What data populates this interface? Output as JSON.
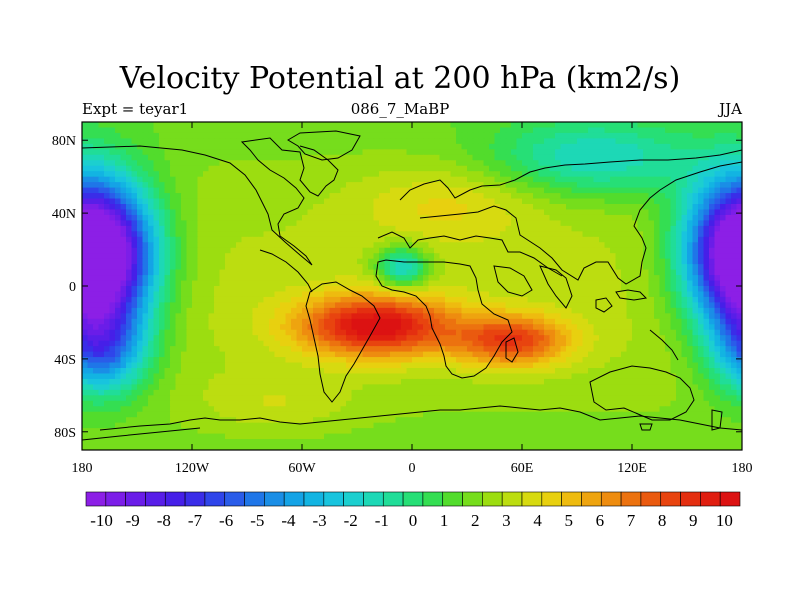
{
  "chart_data": {
    "type": "heatmap",
    "title": "Velocity Potential at 200 hPa (km2/s)",
    "subtitle_left": "Expt = teyar1",
    "subtitle_center": "086_7_MaBP",
    "subtitle_right": "JJA",
    "xlim": [
      -180,
      180
    ],
    "ylim": [
      -90,
      90
    ],
    "x_ticks": [
      -180,
      -120,
      -60,
      0,
      60,
      120,
      180
    ],
    "x_tick_labels": [
      "180",
      "120W",
      "60W",
      "0",
      "60E",
      "120E",
      "180"
    ],
    "y_ticks": [
      80,
      40,
      0,
      -40,
      -80
    ],
    "y_tick_labels": [
      "80N",
      "40N",
      "0",
      "40S",
      "80S"
    ],
    "colorbar": {
      "vmin": -10.5,
      "vmax": 10.5,
      "step": 0.5,
      "labels": [
        "-10",
        "-9",
        "-8",
        "-7",
        "-6",
        "-5",
        "-4",
        "-3",
        "-2",
        "-1",
        "0",
        "1",
        "2",
        "3",
        "4",
        "5",
        "6",
        "7",
        "8",
        "9",
        "10"
      ],
      "label_values": [
        -10,
        -9,
        -8,
        -7,
        -6,
        -5,
        -4,
        -3,
        -2,
        -1,
        0,
        1,
        2,
        3,
        4,
        5,
        6,
        7,
        8,
        9,
        10
      ],
      "colors": [
        "#8c1fe6",
        "#7c1ee8",
        "#6a1de8",
        "#581ee8",
        "#461fe8",
        "#3a2de8",
        "#2f45ea",
        "#2a5ce9",
        "#1f76e8",
        "#1a8ee6",
        "#14a3e6",
        "#12b4e2",
        "#18c4de",
        "#1ccfcf",
        "#1dd8b6",
        "#20dd98",
        "#26df76",
        "#34de52",
        "#52dc2c",
        "#76dd1c",
        "#9cdd10",
        "#bcdd10",
        "#d7da10",
        "#e8d00f",
        "#eebb0f",
        "#eea40f",
        "#ee8c0f",
        "#ec720f",
        "#ea5a0f",
        "#e8440f",
        "#e42f10",
        "#e01e10",
        "#dc1212"
      ]
    },
    "field_centers": [
      {
        "lon": -170,
        "lat": 15,
        "value": -9.0,
        "sx": 22,
        "sy": 28
      },
      {
        "lon": -170,
        "lat": -35,
        "value": -5.0,
        "sx": 18,
        "sy": 18
      },
      {
        "lon": 178,
        "lat": 20,
        "value": -7.0,
        "sx": 22,
        "sy": 28
      },
      {
        "lon": -20,
        "lat": -22,
        "value": 9.5,
        "sx": 30,
        "sy": 12
      },
      {
        "lon": 55,
        "lat": -30,
        "value": 7.5,
        "sx": 22,
        "sy": 10
      },
      {
        "lon": -5,
        "lat": 10,
        "value": -3.0,
        "sx": 10,
        "sy": 8
      },
      {
        "lon": 20,
        "lat": 45,
        "value": 3.5,
        "sx": 35,
        "sy": 15
      },
      {
        "lon": -75,
        "lat": -65,
        "value": 3.0,
        "sx": 30,
        "sy": 12
      },
      {
        "lon": 100,
        "lat": 70,
        "value": -2.0,
        "sx": 40,
        "sy": 15
      }
    ]
  }
}
